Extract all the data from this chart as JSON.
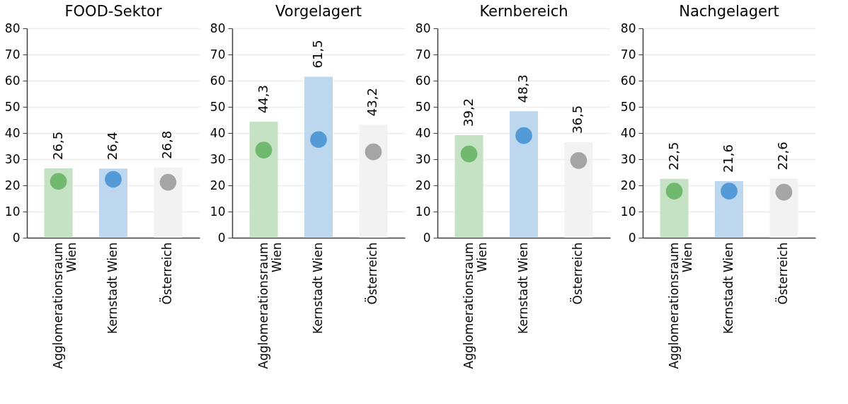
{
  "chart_data": [
    {
      "type": "bar",
      "title": "FOOD-Sektor",
      "categories": [
        "Agglomerationsraum Wien",
        "Kernstadt Wien",
        "Österreich"
      ],
      "ylim": [
        0,
        80
      ],
      "yticks": [
        0,
        10,
        20,
        30,
        40,
        50,
        60,
        70,
        80
      ],
      "grid": "y",
      "series": [
        {
          "type": "bar",
          "colors": [
            "#c5e3c4",
            "#bcd7ee",
            "#f2f2f2"
          ],
          "values": [
            26.5,
            26.4,
            26.8
          ],
          "value_labels": [
            "26,5",
            "26,4",
            "26,8"
          ]
        },
        {
          "type": "scatter",
          "marker": "circle",
          "colors": [
            "#70b96e",
            "#539ad6",
            "#a5a5a5"
          ],
          "values": [
            21.5,
            22.3,
            21.2
          ]
        }
      ]
    },
    {
      "type": "bar",
      "title": "Vorgelagert",
      "categories": [
        "Agglomerationsraum Wien",
        "Kernstadt Wien",
        "Österreich"
      ],
      "ylim": [
        0,
        80
      ],
      "yticks": [
        0,
        10,
        20,
        30,
        40,
        50,
        60,
        70,
        80
      ],
      "grid": "y",
      "series": [
        {
          "type": "bar",
          "colors": [
            "#c5e3c4",
            "#bcd7ee",
            "#f2f2f2"
          ],
          "values": [
            44.3,
            61.5,
            43.2
          ],
          "value_labels": [
            "44,3",
            "61,5",
            "43,2"
          ]
        },
        {
          "type": "scatter",
          "marker": "circle",
          "colors": [
            "#70b96e",
            "#539ad6",
            "#a5a5a5"
          ],
          "values": [
            33.5,
            37.5,
            32.8
          ]
        }
      ]
    },
    {
      "type": "bar",
      "title": "Kernbereich",
      "categories": [
        "Agglomerationsraum Wien",
        "Kernstadt Wien",
        "Österreich"
      ],
      "ylim": [
        0,
        80
      ],
      "yticks": [
        0,
        10,
        20,
        30,
        40,
        50,
        60,
        70,
        80
      ],
      "grid": "y",
      "series": [
        {
          "type": "bar",
          "colors": [
            "#c5e3c4",
            "#bcd7ee",
            "#f2f2f2"
          ],
          "values": [
            39.2,
            48.3,
            36.5
          ],
          "value_labels": [
            "39,2",
            "48,3",
            "36,5"
          ]
        },
        {
          "type": "scatter",
          "marker": "circle",
          "colors": [
            "#70b96e",
            "#539ad6",
            "#a5a5a5"
          ],
          "values": [
            32.0,
            39.0,
            29.5
          ]
        }
      ]
    },
    {
      "type": "bar",
      "title": "Nachgelagert",
      "categories": [
        "Agglomerationsraum Wien",
        "Kernstadt Wien",
        "Österreich"
      ],
      "ylim": [
        0,
        80
      ],
      "yticks": [
        0,
        10,
        20,
        30,
        40,
        50,
        60,
        70,
        80
      ],
      "grid": "y",
      "series": [
        {
          "type": "bar",
          "colors": [
            "#c5e3c4",
            "#bcd7ee",
            "#f2f2f2"
          ],
          "values": [
            22.5,
            21.6,
            22.6
          ],
          "value_labels": [
            "22,5",
            "21,6",
            "22,6"
          ]
        },
        {
          "type": "scatter",
          "marker": "circle",
          "colors": [
            "#70b96e",
            "#539ad6",
            "#a5a5a5"
          ],
          "values": [
            17.8,
            17.8,
            17.4
          ]
        }
      ]
    }
  ]
}
